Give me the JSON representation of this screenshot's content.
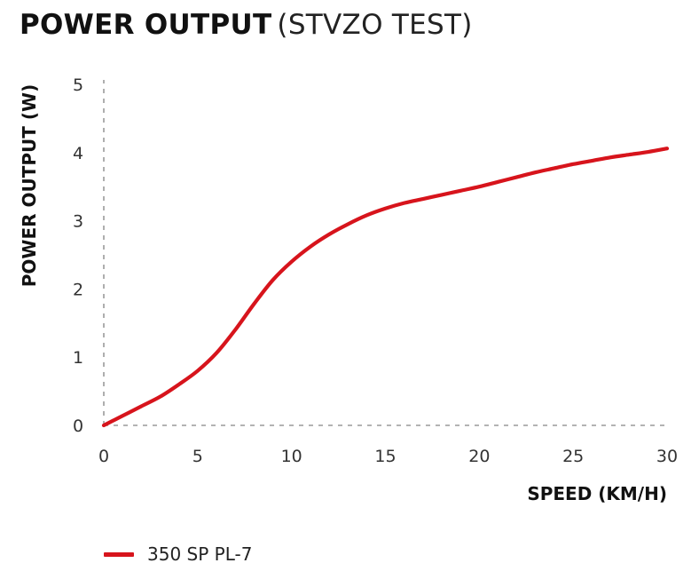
{
  "title": {
    "main": "POWER OUTPUT",
    "sub": "(STVZO TEST)"
  },
  "colors": {
    "series": "#d7141c",
    "axis": "#9a9a9a",
    "text": "#222222"
  },
  "chart_data": {
    "type": "line",
    "xlabel": "SPEED (KM/H)",
    "ylabel": "POWER OUTPUT (W)",
    "xlim": [
      0,
      30
    ],
    "ylim": [
      0,
      5
    ],
    "xticks": [
      0,
      5,
      10,
      15,
      20,
      25,
      30
    ],
    "yticks": [
      0,
      1,
      2,
      3,
      4,
      5
    ],
    "grid": false,
    "axis_style": "dashed",
    "legend_position": "bottom-left",
    "series": [
      {
        "name": "350 SP PL-7",
        "x": [
          0,
          1,
          2,
          3,
          4,
          5,
          6,
          7,
          8,
          9,
          10,
          11,
          12,
          13,
          14,
          15,
          16,
          17,
          18,
          19,
          20,
          21,
          22,
          23,
          24,
          25,
          26,
          27,
          28,
          29,
          30
        ],
        "y": [
          0.0,
          0.14,
          0.28,
          0.42,
          0.6,
          0.8,
          1.06,
          1.4,
          1.78,
          2.13,
          2.4,
          2.62,
          2.8,
          2.95,
          3.08,
          3.18,
          3.26,
          3.32,
          3.38,
          3.44,
          3.5,
          3.57,
          3.64,
          3.71,
          3.77,
          3.83,
          3.88,
          3.93,
          3.97,
          4.01,
          4.06
        ]
      }
    ]
  }
}
